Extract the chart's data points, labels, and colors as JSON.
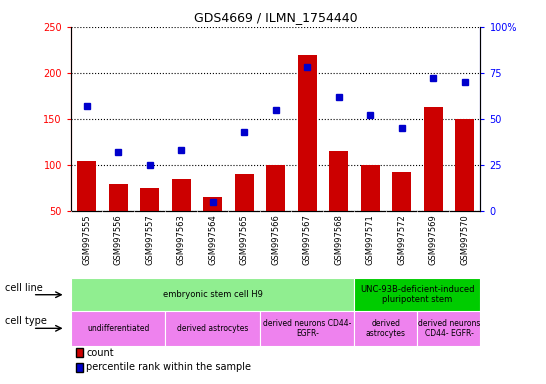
{
  "title": "GDS4669 / ILMN_1754440",
  "samples": [
    "GSM997555",
    "GSM997556",
    "GSM997557",
    "GSM997563",
    "GSM997564",
    "GSM997565",
    "GSM997566",
    "GSM997567",
    "GSM997568",
    "GSM997571",
    "GSM997572",
    "GSM997569",
    "GSM997570"
  ],
  "count": [
    105,
    80,
    75,
    85,
    65,
    90,
    100,
    220,
    115,
    100,
    93,
    163,
    150
  ],
  "percentile": [
    57,
    32,
    25,
    33,
    5,
    43,
    55,
    78,
    62,
    52,
    45,
    72,
    70
  ],
  "ylim_left": [
    50,
    250
  ],
  "ylim_right": [
    0,
    100
  ],
  "yticks_left": [
    50,
    100,
    150,
    200,
    250
  ],
  "yticks_right": [
    0,
    25,
    50,
    75,
    100
  ],
  "bar_color": "#cc0000",
  "dot_color": "#0000cc",
  "cell_line_groups": [
    {
      "label": "embryonic stem cell H9",
      "start": 0,
      "end": 9,
      "color": "#90ee90"
    },
    {
      "label": "UNC-93B-deficient-induced\npluripotent stem",
      "start": 9,
      "end": 13,
      "color": "#00cc00"
    }
  ],
  "cell_type_groups": [
    {
      "label": "undifferentiated",
      "start": 0,
      "end": 3,
      "color": "#ee82ee"
    },
    {
      "label": "derived astrocytes",
      "start": 3,
      "end": 6,
      "color": "#ee82ee"
    },
    {
      "label": "derived neurons CD44-\nEGFR-",
      "start": 6,
      "end": 9,
      "color": "#ee82ee"
    },
    {
      "label": "derived\nastrocytes",
      "start": 9,
      "end": 11,
      "color": "#ee82ee"
    },
    {
      "label": "derived neurons\nCD44- EGFR-",
      "start": 11,
      "end": 13,
      "color": "#ee82ee"
    }
  ],
  "legend_count_label": "count",
  "legend_pct_label": "percentile rank within the sample",
  "cell_line_label": "cell line",
  "cell_type_label": "cell type",
  "xticklabel_bg": "#c8c8c8",
  "fig_bg": "#ffffff"
}
